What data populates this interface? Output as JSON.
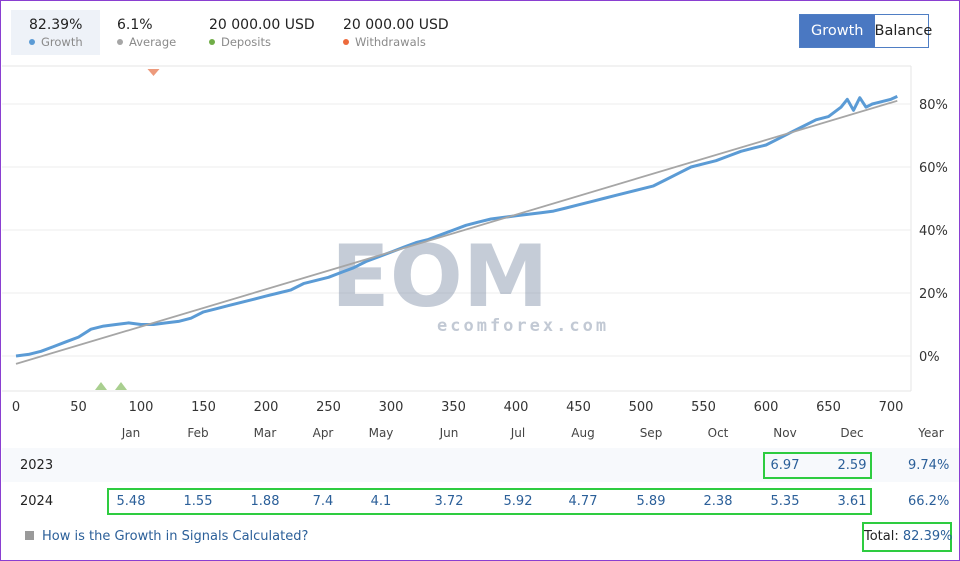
{
  "stats": [
    {
      "value": "82.39%",
      "label": "Growth",
      "color": "#5b9bd5",
      "active": true
    },
    {
      "value": "6.1%",
      "label": "Average",
      "color": "#a6a6a6",
      "active": false
    },
    {
      "value": "20 000.00 USD",
      "label": "Deposits",
      "color": "#70ad47",
      "active": false
    },
    {
      "value": "20 000.00 USD",
      "label": "Withdrawals",
      "color": "#ed6a3c",
      "active": false
    }
  ],
  "toggle": {
    "growth_label": "Growth",
    "balance_label": "Balance",
    "selected": "Growth"
  },
  "watermark": {
    "brand": "EOM",
    "site": "ecomforex.com"
  },
  "chart_data": {
    "type": "line",
    "xlim": [
      0,
      710
    ],
    "ylim": [
      -10,
      90
    ],
    "x_ticks": [
      0,
      50,
      100,
      150,
      200,
      250,
      300,
      350,
      400,
      450,
      500,
      550,
      600,
      650,
      700
    ],
    "y_ticks": [
      0,
      20,
      40,
      60,
      80
    ],
    "y_tick_labels": [
      "0%",
      "20%",
      "40%",
      "60%",
      "80%"
    ],
    "grid": "horizontal",
    "series": [
      {
        "name": "Growth",
        "color": "#5b9bd5",
        "points": [
          [
            0,
            0
          ],
          [
            10,
            0.5
          ],
          [
            20,
            1.5
          ],
          [
            30,
            3
          ],
          [
            40,
            4.5
          ],
          [
            50,
            6
          ],
          [
            60,
            8.5
          ],
          [
            70,
            9.5
          ],
          [
            80,
            10
          ],
          [
            90,
            10.5
          ],
          [
            100,
            10
          ],
          [
            110,
            10
          ],
          [
            120,
            10.5
          ],
          [
            130,
            11
          ],
          [
            140,
            12
          ],
          [
            150,
            14
          ],
          [
            160,
            15
          ],
          [
            170,
            16
          ],
          [
            180,
            17
          ],
          [
            190,
            18
          ],
          [
            200,
            19
          ],
          [
            210,
            20
          ],
          [
            220,
            21
          ],
          [
            230,
            23
          ],
          [
            240,
            24
          ],
          [
            250,
            25
          ],
          [
            260,
            26.5
          ],
          [
            270,
            28
          ],
          [
            280,
            30
          ],
          [
            290,
            31.5
          ],
          [
            300,
            33
          ],
          [
            310,
            34.5
          ],
          [
            320,
            36
          ],
          [
            330,
            37
          ],
          [
            340,
            38.5
          ],
          [
            350,
            40
          ],
          [
            360,
            41.5
          ],
          [
            370,
            42.5
          ],
          [
            380,
            43.5
          ],
          [
            390,
            44
          ],
          [
            400,
            44.5
          ],
          [
            410,
            45
          ],
          [
            420,
            45.5
          ],
          [
            430,
            46
          ],
          [
            440,
            47
          ],
          [
            450,
            48
          ],
          [
            460,
            49
          ],
          [
            470,
            50
          ],
          [
            480,
            51
          ],
          [
            490,
            52
          ],
          [
            500,
            53
          ],
          [
            510,
            54
          ],
          [
            520,
            56
          ],
          [
            530,
            58
          ],
          [
            540,
            60
          ],
          [
            550,
            61
          ],
          [
            560,
            62
          ],
          [
            570,
            63.5
          ],
          [
            580,
            65
          ],
          [
            590,
            66
          ],
          [
            600,
            67
          ],
          [
            610,
            69
          ],
          [
            620,
            71
          ],
          [
            630,
            73
          ],
          [
            640,
            75
          ],
          [
            650,
            76
          ],
          [
            660,
            79
          ],
          [
            665,
            81.5
          ],
          [
            670,
            78
          ],
          [
            675,
            82
          ],
          [
            680,
            79
          ],
          [
            685,
            80
          ],
          [
            690,
            80.5
          ],
          [
            700,
            81.5
          ],
          [
            705,
            82.4
          ]
        ]
      },
      {
        "name": "Average",
        "color": "#a6a6a6",
        "points": [
          [
            0,
            -2.5
          ],
          [
            705,
            81
          ]
        ]
      }
    ],
    "markers": [
      {
        "type": "withdrawal",
        "x": 110,
        "color": "#ed9a7c"
      },
      {
        "type": "deposit",
        "x": 68,
        "color": "#a9cf8f"
      },
      {
        "type": "deposit",
        "x": 84,
        "color": "#a9cf8f"
      }
    ]
  },
  "table": {
    "months": [
      "Jan",
      "Feb",
      "Mar",
      "Apr",
      "May",
      "Jun",
      "Jul",
      "Aug",
      "Sep",
      "Oct",
      "Nov",
      "Dec"
    ],
    "year_header": "Year",
    "rows": [
      {
        "year": "2023",
        "values": [
          "",
          "",
          "",
          "",
          "",
          "",
          "",
          "",
          "",
          "",
          "6.97",
          "2.59"
        ],
        "total": "9.74%"
      },
      {
        "year": "2024",
        "values": [
          "5.48",
          "1.55",
          "1.88",
          "7.4",
          "4.1",
          "3.72",
          "5.92",
          "4.77",
          "5.89",
          "2.38",
          "5.35",
          "3.61"
        ],
        "total": "66.2%"
      }
    ],
    "help_link": "How is the Growth in Signals Calculated?",
    "total_label": "Total:",
    "total_value": "82.39%"
  }
}
